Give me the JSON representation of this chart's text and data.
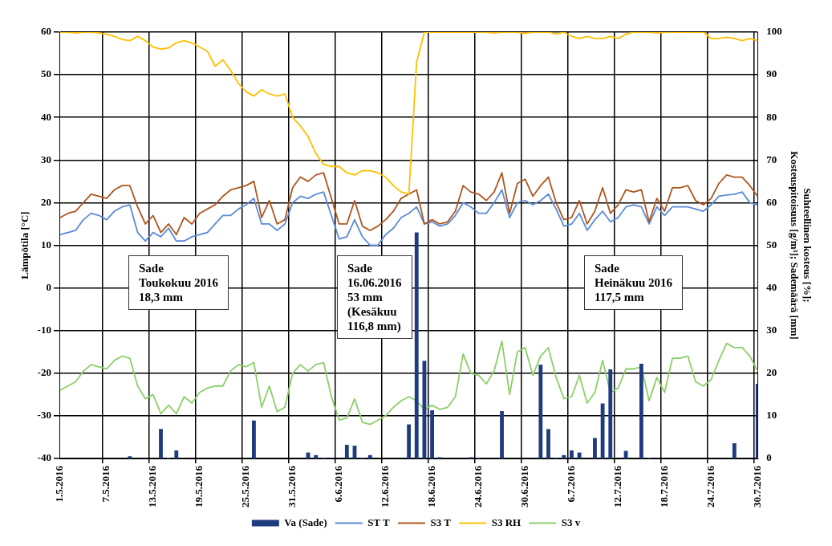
{
  "chart_data": {
    "type": "line",
    "categories": [
      "1.5.2016",
      null,
      null,
      null,
      null,
      null,
      "7.5.2016",
      null,
      null,
      null,
      null,
      null,
      "13.5.2016",
      null,
      null,
      null,
      null,
      null,
      "19.5.2016",
      null,
      null,
      null,
      null,
      null,
      "25.5.2016",
      null,
      null,
      null,
      null,
      null,
      "31.5.2016",
      null,
      null,
      null,
      null,
      null,
      "6.6.2016",
      null,
      null,
      null,
      null,
      null,
      "12.6.2016",
      null,
      null,
      null,
      null,
      null,
      "18.6.2016",
      null,
      null,
      null,
      null,
      null,
      "24.6.2016",
      null,
      null,
      null,
      null,
      null,
      "30.6.2016",
      null,
      null,
      null,
      null,
      null,
      "6.7.2016",
      null,
      null,
      null,
      null,
      null,
      "12.7.2016",
      null,
      null,
      null,
      null,
      null,
      "18.7.2016",
      null,
      null,
      null,
      null,
      null,
      "24.7.2016",
      null,
      null,
      null,
      null,
      null,
      "30.7.2016"
    ],
    "ylabel": "Lämpötila [°C]",
    "y2label": "Suhteellinen kosteus [%];\nKosteuspitoisuus [g/m³]; Sademäärä [mm]",
    "ylim": [
      -40,
      60
    ],
    "yticks": [
      -40,
      -30,
      -20,
      -10,
      0,
      10,
      20,
      30,
      40,
      50,
      60
    ],
    "y2lim": [
      0,
      100
    ],
    "y2ticks": [
      0,
      10,
      20,
      30,
      40,
      50,
      60,
      70,
      80,
      90,
      100
    ],
    "grid": true,
    "legend": "bottom",
    "marker": "none",
    "annotations": [
      "Sade\nToukokuu 2016\n18,3 mm",
      "Sade\n16.06.2016\n53 mm\n(Kesäkuu\n116,8 mm)",
      "Sade\nHeinäkuu 2016\n117,5 mm"
    ],
    "series": [
      {
        "name": "Va (Sade)",
        "type": "bar",
        "axis": "y2",
        "color": "#1f3b80",
        "values": [
          0,
          0,
          0,
          0,
          0,
          0,
          0,
          0,
          0,
          0.5,
          0,
          0,
          0,
          6.9,
          0.2,
          1.9,
          0,
          0,
          0,
          0,
          0,
          0,
          0,
          0,
          0,
          8.9,
          0,
          0,
          0,
          0,
          0,
          0,
          1.4,
          0.8,
          0.2,
          0,
          0,
          3.2,
          3,
          0.2,
          0.8,
          0,
          0,
          0,
          0,
          8,
          53,
          22.9,
          11.3,
          0.3,
          0,
          0,
          0,
          0.3,
          0.2,
          0,
          0,
          11.1,
          0,
          0,
          0,
          0,
          22,
          6.9,
          0.2,
          0.8,
          1.9,
          1.4,
          0,
          4.8,
          12.9,
          20.9,
          0,
          1.8,
          0,
          22.2,
          0.2,
          0,
          0,
          0,
          0,
          0,
          0,
          0,
          0,
          0,
          0,
          3.6,
          0,
          0,
          17.5
        ]
      },
      {
        "name": "ST T",
        "color": "#5b8ad8",
        "values": [
          12.5,
          13,
          13.5,
          16,
          17.5,
          17,
          16,
          18,
          19,
          19.5,
          13,
          11,
          13,
          12,
          14,
          11,
          11,
          12,
          12.5,
          13,
          15,
          17,
          17,
          18.5,
          19.5,
          21,
          15,
          15,
          13.5,
          15,
          20,
          21.5,
          21,
          22,
          22.5,
          17,
          11.5,
          12,
          16,
          12,
          10,
          10,
          12.5,
          14,
          16.5,
          17.5,
          19,
          15,
          15.5,
          14.5,
          15,
          17,
          20,
          19,
          17.5,
          17.5,
          20,
          23,
          16.5,
          20,
          20.5,
          19.5,
          20.5,
          22,
          18.5,
          14.5,
          15,
          17.5,
          13.5,
          16,
          18,
          15.5,
          16.5,
          19,
          19.5,
          19,
          15,
          19,
          17,
          19,
          19,
          19,
          18.5,
          18,
          19.5,
          21.5,
          21.8,
          22,
          22.5,
          20,
          19.5
        ]
      },
      {
        "name": "S3 T",
        "color": "#b0561e",
        "values": [
          16.5,
          17.5,
          18,
          20,
          22,
          21.5,
          21,
          23,
          24,
          24,
          19,
          15,
          17,
          13,
          15,
          12.5,
          16.5,
          15,
          17.5,
          18.5,
          19.5,
          21.5,
          23,
          23.5,
          24,
          25,
          16.5,
          20.5,
          15,
          16,
          23.5,
          26,
          25,
          26.5,
          27,
          21,
          15,
          15,
          20.5,
          14.5,
          13.5,
          14.5,
          16,
          18,
          21,
          22,
          23,
          15,
          16,
          15,
          15.5,
          18,
          24,
          22.5,
          22,
          20.5,
          22.5,
          27,
          17.5,
          24.5,
          25.5,
          21.5,
          24,
          26,
          20,
          16,
          16.5,
          20.5,
          15,
          18,
          23.5,
          17.5,
          19.5,
          23,
          22.5,
          23,
          15.5,
          21,
          18,
          23.5,
          23.5,
          24,
          20.5,
          19.5,
          21,
          24.5,
          26.5,
          26,
          26,
          24,
          21.5
        ]
      },
      {
        "name": "S3 RH",
        "axis": "y2",
        "color": "#ffc000",
        "values": [
          100,
          100,
          99.8,
          100,
          100,
          99.8,
          99.5,
          99,
          98.3,
          98,
          99,
          98,
          96.5,
          96,
          96.3,
          97.5,
          98,
          97.5,
          96.5,
          95.5,
          92,
          93.5,
          91,
          88,
          86,
          85,
          86.5,
          85.5,
          85,
          85.5,
          80,
          78,
          75.5,
          71.5,
          69,
          68.5,
          68.5,
          67,
          66.5,
          67.5,
          67.5,
          67,
          66,
          64,
          62.5,
          62,
          93,
          100,
          100,
          100,
          100,
          100,
          100,
          100,
          100,
          100,
          99.8,
          100,
          100,
          100,
          99.7,
          100,
          100,
          100,
          99.5,
          100,
          99,
          98.5,
          99,
          98.5,
          98.5,
          99,
          98.5,
          99.5,
          100,
          100,
          100,
          99.8,
          100,
          100,
          100,
          100,
          100,
          100,
          98.5,
          98.5,
          98.8,
          98.5,
          98,
          98.5,
          98
        ]
      },
      {
        "name": "S3 v",
        "axis": "y2",
        "color": "#8ccf68",
        "values": [
          16,
          17,
          18,
          20.5,
          22,
          21.5,
          21,
          23,
          24,
          23.5,
          17,
          14,
          15,
          10.5,
          12.5,
          10.5,
          14.5,
          13,
          15.5,
          16.5,
          17,
          17,
          20.5,
          22,
          21.5,
          22.5,
          12,
          17,
          11,
          12,
          20,
          22,
          20.5,
          22,
          22.5,
          14.5,
          9,
          9.5,
          14,
          8.5,
          8,
          9,
          10,
          12,
          13.5,
          14.5,
          13.5,
          11.5,
          12.5,
          11.5,
          12,
          14.5,
          24.5,
          20,
          19.5,
          17.5,
          20.5,
          27.5,
          15,
          25,
          26,
          19.5,
          24,
          26,
          19,
          14,
          14.5,
          19.5,
          13,
          15.5,
          23,
          15.5,
          16.5,
          21,
          21,
          21.5,
          13.5,
          19,
          15.5,
          23.5,
          23.5,
          24,
          18,
          17,
          18.5,
          23,
          27,
          26,
          26,
          24,
          20.5
        ]
      }
    ]
  }
}
